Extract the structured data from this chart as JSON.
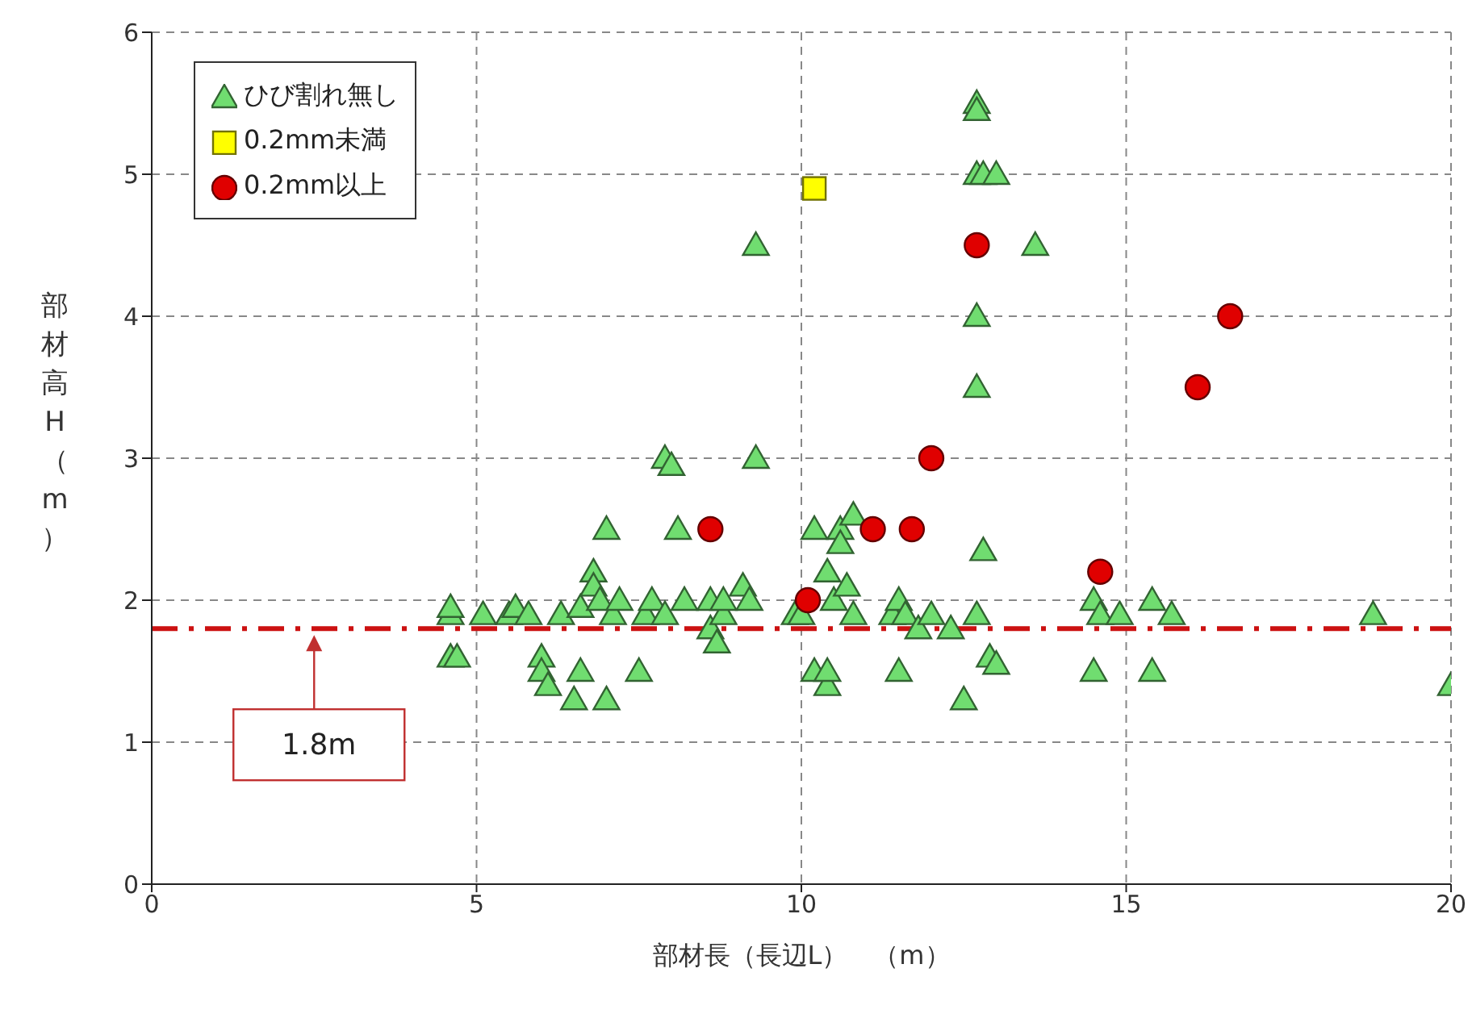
{
  "chart_data": {
    "type": "scatter",
    "xlabel": "部材長（長辺L）　（m）",
    "ylabel": "部材高H（m）",
    "xlim": [
      0,
      20
    ],
    "xticks": [
      0,
      5,
      10,
      15,
      20
    ],
    "ylim": [
      0,
      6
    ],
    "yticks": [
      0,
      1,
      2,
      3,
      4,
      5,
      6
    ],
    "grid": true,
    "legend": "top left",
    "series": [
      {
        "name": "ひび割れ無し",
        "color": "#70dd70",
        "marker": "triangle",
        "x": [
          4.6,
          4.6,
          4.6,
          4.7,
          5.1,
          5.5,
          5.6,
          5.8,
          6.0,
          6.0,
          6.1,
          6.3,
          6.5,
          6.6,
          6.6,
          6.8,
          6.8,
          6.9,
          7.0,
          7.0,
          7.1,
          7.2,
          7.5,
          7.6,
          7.7,
          7.9,
          7.9,
          8.0,
          8.1,
          8.2,
          8.6,
          8.6,
          8.7,
          8.8,
          8.8,
          9.1,
          9.2,
          9.3,
          9.3,
          9.9,
          10.0,
          10.2,
          10.2,
          10.4,
          10.4,
          10.4,
          10.5,
          10.6,
          10.6,
          10.7,
          10.8,
          10.8,
          11.4,
          11.5,
          11.5,
          11.6,
          11.8,
          12.0,
          12.3,
          12.5,
          12.7,
          12.7,
          12.7,
          12.8,
          13.0,
          13.6,
          12.7,
          12.7,
          12.8,
          12.7,
          12.9,
          13.0,
          14.5,
          14.5,
          14.6,
          14.9,
          15.4,
          15.4,
          15.7,
          18.8,
          20.0
        ],
        "values": [
          1.9,
          1.95,
          1.6,
          1.6,
          1.9,
          1.9,
          1.95,
          1.9,
          1.6,
          1.5,
          1.4,
          1.9,
          1.3,
          1.5,
          1.95,
          2.2,
          2.1,
          2.0,
          1.3,
          2.5,
          1.9,
          2.0,
          1.5,
          1.9,
          2.0,
          1.9,
          3.0,
          2.95,
          2.5,
          2.0,
          2.0,
          1.8,
          1.7,
          1.9,
          2.0,
          2.1,
          2.0,
          4.5,
          3.0,
          1.9,
          1.9,
          1.5,
          2.5,
          1.4,
          1.5,
          2.2,
          2.0,
          2.5,
          2.4,
          2.1,
          2.6,
          1.9,
          1.9,
          2.0,
          1.5,
          1.9,
          1.8,
          1.9,
          1.8,
          1.3,
          5.5,
          5.45,
          5.0,
          5.0,
          5.0,
          4.5,
          4.0,
          3.5,
          2.35,
          1.9,
          1.6,
          1.55,
          1.5,
          2.0,
          1.9,
          1.9,
          2.0,
          1.5,
          1.9,
          1.9,
          1.4
        ]
      },
      {
        "name": "0.2mm未満",
        "color": "#ffff00",
        "marker": "square",
        "x": [
          10.2
        ],
        "values": [
          4.9
        ]
      },
      {
        "name": "0.2mm以上",
        "color": "#e00000",
        "marker": "circle",
        "x": [
          8.6,
          10.1,
          11.1,
          11.7,
          12.0,
          12.7,
          14.6,
          16.1,
          16.6
        ],
        "values": [
          2.5,
          2.0,
          2.5,
          2.5,
          3.0,
          4.5,
          2.2,
          3.5,
          4.0
        ]
      }
    ],
    "ref_lines": [
      {
        "axis": "y",
        "value": 1.8,
        "color": "#cc1111",
        "line_style": "dashdot"
      }
    ],
    "annotations": [
      {
        "text": "1.8m",
        "x": 2.5,
        "y": 1.8
      }
    ]
  }
}
